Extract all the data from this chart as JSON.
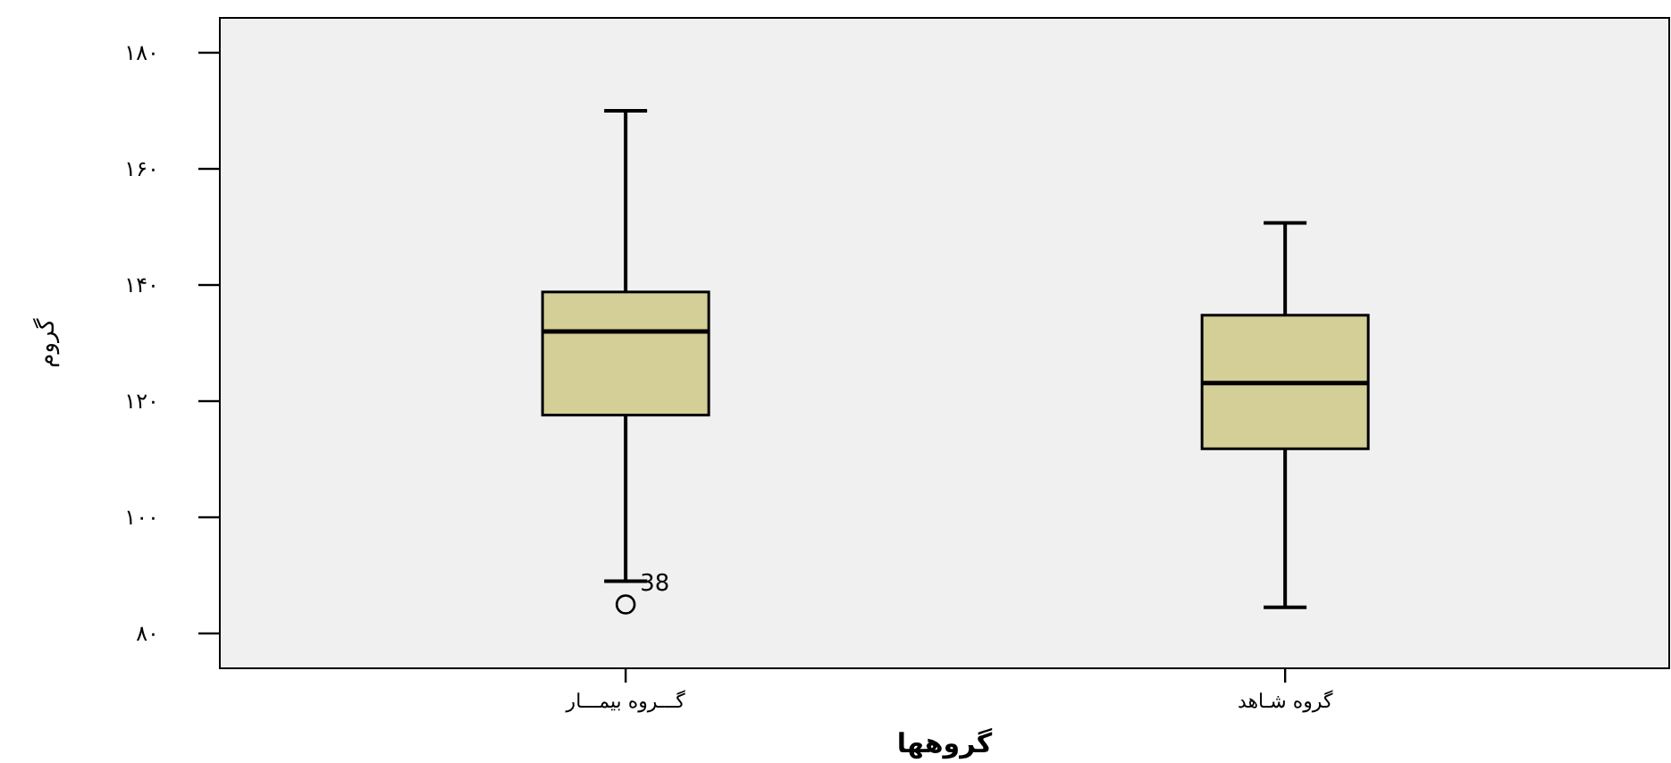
{
  "chart_data": {
    "type": "box",
    "xlabel": "گروهها",
    "ylabel": "گروم",
    "categories": [
      "گـــروه بیمـــار",
      "گروه شـاهد"
    ],
    "series": [
      {
        "color": "#d4ce97",
        "boxes": [
          {
            "low": 89,
            "q1": 117.6,
            "median": 132,
            "q3": 138.8,
            "high": 170,
            "outliers": [
              85
            ]
          },
          {
            "low": 84.5,
            "q1": 111.8,
            "median": 123.1,
            "q3": 134.8,
            "high": 150.7
          }
        ]
      }
    ],
    "ylim": [
      74,
      186
    ],
    "yticks": [
      {
        "value": 80,
        "label": "۸۰"
      },
      {
        "value": 100,
        "label": "۱۰۰"
      },
      {
        "value": 120,
        "label": "۱۲۰"
      },
      {
        "value": 140,
        "label": "۱۴۰"
      },
      {
        "value": 160,
        "label": "۱۶۰"
      },
      {
        "value": 180,
        "label": "۱۸۰"
      }
    ],
    "annotations": [
      "38"
    ]
  }
}
